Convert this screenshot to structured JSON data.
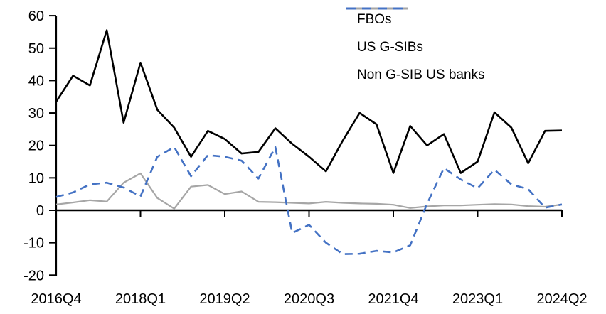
{
  "chart_data": {
    "type": "line",
    "title": "",
    "xlabel": "",
    "ylabel": "",
    "grid": false,
    "legend_position": "top-right",
    "ylim": [
      -20,
      60
    ],
    "y_ticks": [
      60,
      50,
      40,
      30,
      20,
      10,
      0,
      -10,
      -20
    ],
    "x_tick_labels": [
      "2016Q4",
      "2018Q1",
      "2019Q2",
      "2020Q3",
      "2021Q4",
      "2023Q1",
      "2024Q2"
    ],
    "x_tick_indices": [
      0,
      5,
      10,
      15,
      20,
      25,
      30
    ],
    "categories": [
      "2016Q4",
      "2017Q1",
      "2017Q2",
      "2017Q3",
      "2017Q4",
      "2018Q1",
      "2018Q2",
      "2018Q3",
      "2018Q4",
      "2019Q1",
      "2019Q2",
      "2019Q3",
      "2019Q4",
      "2020Q1",
      "2020Q2",
      "2020Q3",
      "2020Q4",
      "2021Q1",
      "2021Q2",
      "2021Q3",
      "2021Q4",
      "2022Q1",
      "2022Q2",
      "2022Q3",
      "2022Q4",
      "2023Q1",
      "2023Q2",
      "2023Q3",
      "2023Q4",
      "2024Q1",
      "2024Q2"
    ],
    "series": [
      {
        "name": "FBOs",
        "color": "#000000",
        "line_style": "solid",
        "values": [
          33.5,
          41.5,
          38.5,
          55.5,
          27,
          45.5,
          31,
          25.5,
          16.5,
          24.5,
          22,
          17.5,
          18,
          25.3,
          20.5,
          16.5,
          12,
          21.5,
          30,
          26.5,
          11.5,
          26,
          20,
          23.5,
          11.5,
          15,
          30.2,
          25.5,
          14.5,
          24.5,
          24.6
        ]
      },
      {
        "name": "US G-SIBs",
        "color": "#a6a6a6",
        "line_style": "solid",
        "values": [
          1.8,
          2.4,
          3.1,
          2.7,
          8.5,
          11.4,
          3.8,
          0.5,
          7.3,
          7.8,
          5,
          5.8,
          2.6,
          2.5,
          2.3,
          2.1,
          2.6,
          2.3,
          2.1,
          2,
          1.7,
          0.7,
          1.2,
          1.5,
          1.5,
          1.7,
          1.9,
          1.8,
          1.3,
          1.1,
          1.8
        ]
      },
      {
        "name": "Non G-SIB US banks",
        "color": "#4472c4",
        "line_style": "dashed",
        "values": [
          4.1,
          5.5,
          8,
          8.5,
          7,
          4.3,
          16.5,
          19.5,
          10.5,
          17,
          16.5,
          15.3,
          9.8,
          19.5,
          -7,
          -4.5,
          -10,
          -13.5,
          -13.4,
          -12.5,
          -13,
          -10.8,
          2,
          13,
          9.5,
          6.8,
          12.5,
          8,
          6.5,
          0.8,
          1.8
        ]
      }
    ]
  }
}
